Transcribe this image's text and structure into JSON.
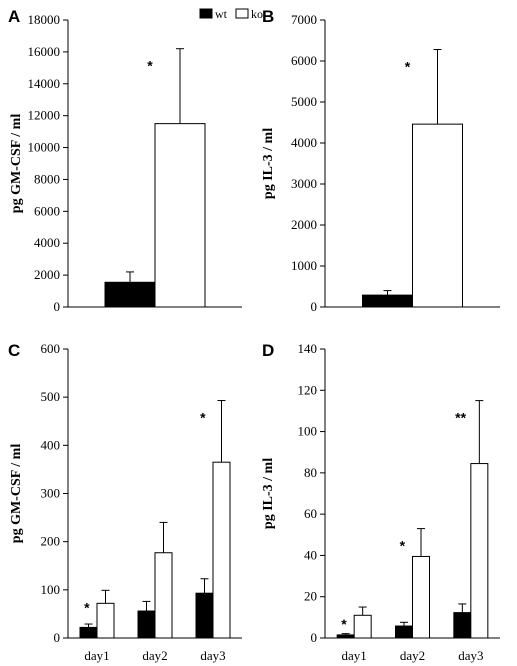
{
  "legend": [
    {
      "label": "wt",
      "color": "#000000"
    },
    {
      "label": "ko",
      "color": "#ffffff"
    }
  ],
  "chart_data": [
    {
      "panel_label": "A",
      "type": "bar",
      "ylabel": "pg GM-CSF / ml",
      "ylim": [
        0,
        18000
      ],
      "yticks": [
        0,
        2000,
        4000,
        6000,
        8000,
        10000,
        12000,
        14000,
        16000,
        18000
      ],
      "categories": [
        ""
      ],
      "series": [
        {
          "name": "wt",
          "color": "#000000",
          "values": [
            1550
          ],
          "errors": [
            650
          ]
        },
        {
          "name": "ko",
          "color": "#ffffff",
          "values": [
            11500
          ],
          "errors": [
            4700
          ]
        }
      ],
      "significance": [
        "*"
      ]
    },
    {
      "panel_label": "B",
      "type": "bar",
      "ylabel": "pg IL-3 / ml",
      "ylim": [
        0,
        7000
      ],
      "yticks": [
        0,
        1000,
        2000,
        3000,
        4000,
        5000,
        6000,
        7000
      ],
      "categories": [
        ""
      ],
      "series": [
        {
          "name": "wt",
          "color": "#000000",
          "values": [
            290
          ],
          "errors": [
            110
          ]
        },
        {
          "name": "ko",
          "color": "#ffffff",
          "values": [
            4460
          ],
          "errors": [
            1820
          ]
        }
      ],
      "significance": [
        "*"
      ]
    },
    {
      "panel_label": "C",
      "type": "bar",
      "ylabel": "pg GM-CSF / ml",
      "ylim": [
        0,
        600
      ],
      "yticks": [
        0,
        100,
        200,
        300,
        400,
        500,
        600
      ],
      "categories": [
        "day1",
        "day2",
        "day3"
      ],
      "series": [
        {
          "name": "wt",
          "color": "#000000",
          "values": [
            22,
            56,
            93
          ],
          "errors": [
            7,
            20,
            30
          ]
        },
        {
          "name": "ko",
          "color": "#ffffff",
          "values": [
            72,
            177,
            365
          ],
          "errors": [
            27,
            63,
            128
          ]
        }
      ],
      "significance": [
        "*",
        "",
        "*"
      ]
    },
    {
      "panel_label": "D",
      "type": "bar",
      "ylabel": "pg IL-3 / ml",
      "ylim": [
        0,
        140
      ],
      "yticks": [
        0,
        20,
        40,
        60,
        80,
        100,
        120,
        140
      ],
      "categories": [
        "day1",
        "day2",
        "day3"
      ],
      "series": [
        {
          "name": "wt",
          "color": "#000000",
          "values": [
            1.5,
            5.8,
            12.3
          ],
          "errors": [
            0.6,
            1.8,
            4.2
          ]
        },
        {
          "name": "ko",
          "color": "#ffffff",
          "values": [
            11,
            39.5,
            84.5
          ],
          "errors": [
            4,
            13.5,
            30.5
          ]
        }
      ],
      "significance": [
        "*",
        "*",
        "**"
      ]
    }
  ]
}
